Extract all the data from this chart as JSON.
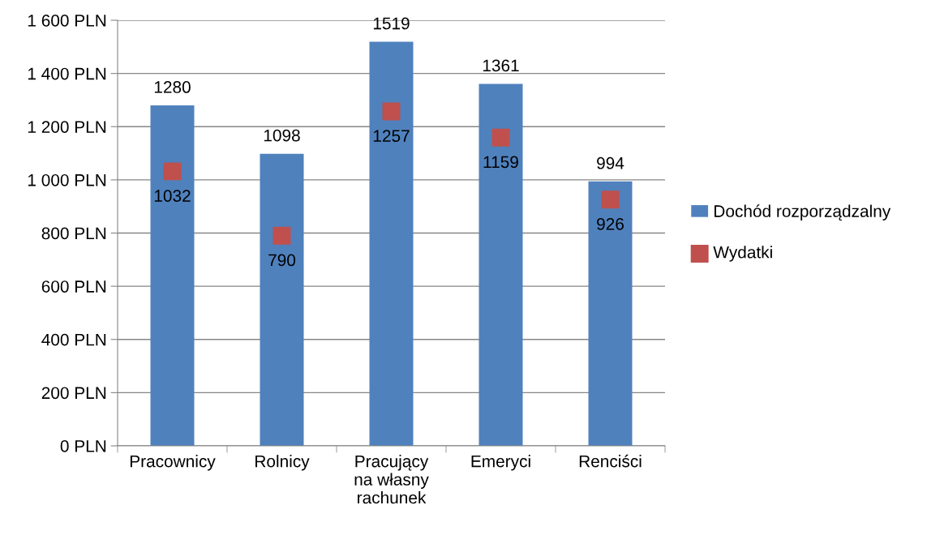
{
  "chart_data": {
    "type": "bar",
    "categories": [
      "Pracownicy",
      "Rolnicy",
      "Pracujący na własny rachunek",
      "Emeryci",
      "Renciści"
    ],
    "series": [
      {
        "name": "Dochód rozporządzalny",
        "color": "#4f81bd",
        "values": [
          1280,
          1098,
          1519,
          1361,
          994
        ]
      },
      {
        "name": "Wydatki",
        "type": "scatter",
        "marker": "square",
        "color": "#c0504d",
        "x": [
          "Pracownicy",
          "Rolnicy",
          "Pracujący na własny rachunek",
          "Emeryci",
          "Renciści"
        ],
        "values": [
          1032,
          790,
          1257,
          1159,
          926
        ]
      }
    ],
    "ylim": [
      0,
      1600
    ],
    "yticks": [
      {
        "value": 0,
        "label": "0 PLN"
      },
      {
        "value": 200,
        "label": "200 PLN"
      },
      {
        "value": 400,
        "label": "400 PLN"
      },
      {
        "value": 600,
        "label": "600 PLN"
      },
      {
        "value": 800,
        "label": "800 PLN"
      },
      {
        "value": 1000,
        "label": "1 000 PLN"
      },
      {
        "value": 1200,
        "label": "1 200 PLN"
      },
      {
        "value": 1400,
        "label": "1 400 PLN"
      },
      {
        "value": 1600,
        "label": "1 600 PLN"
      }
    ],
    "grid": "y",
    "legend": "right",
    "data_labels": true
  }
}
